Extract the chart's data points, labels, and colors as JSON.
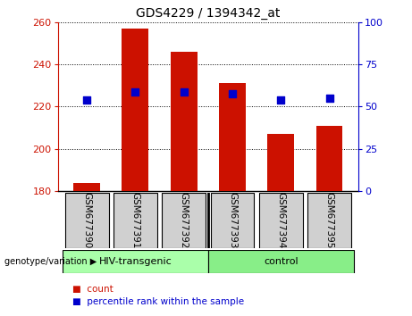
{
  "title": "GDS4229 / 1394342_at",
  "samples": [
    "GSM677390",
    "GSM677391",
    "GSM677392",
    "GSM677393",
    "GSM677394",
    "GSM677395"
  ],
  "bar_values": [
    184,
    257,
    246,
    231,
    207,
    211
  ],
  "bar_base": 180,
  "percentile_values": [
    223,
    227,
    227,
    226,
    223,
    224
  ],
  "ylim_left": [
    180,
    260
  ],
  "ylim_right": [
    0,
    100
  ],
  "yticks_left": [
    180,
    200,
    220,
    240,
    260
  ],
  "yticks_right": [
    0,
    25,
    50,
    75,
    100
  ],
  "bar_color": "#cc1100",
  "dot_color": "#0000cc",
  "group1_label": "HIV-transgenic",
  "group2_label": "control",
  "group1_color": "#aaffaa",
  "group2_color": "#88ee88",
  "geno_label": "genotype/variation",
  "legend_count": "count",
  "legend_pct": "percentile rank within the sample",
  "title_fontsize": 10,
  "tick_fontsize": 8,
  "bar_width": 0.55,
  "dot_size": 30,
  "gray_color": "#d0d0d0"
}
